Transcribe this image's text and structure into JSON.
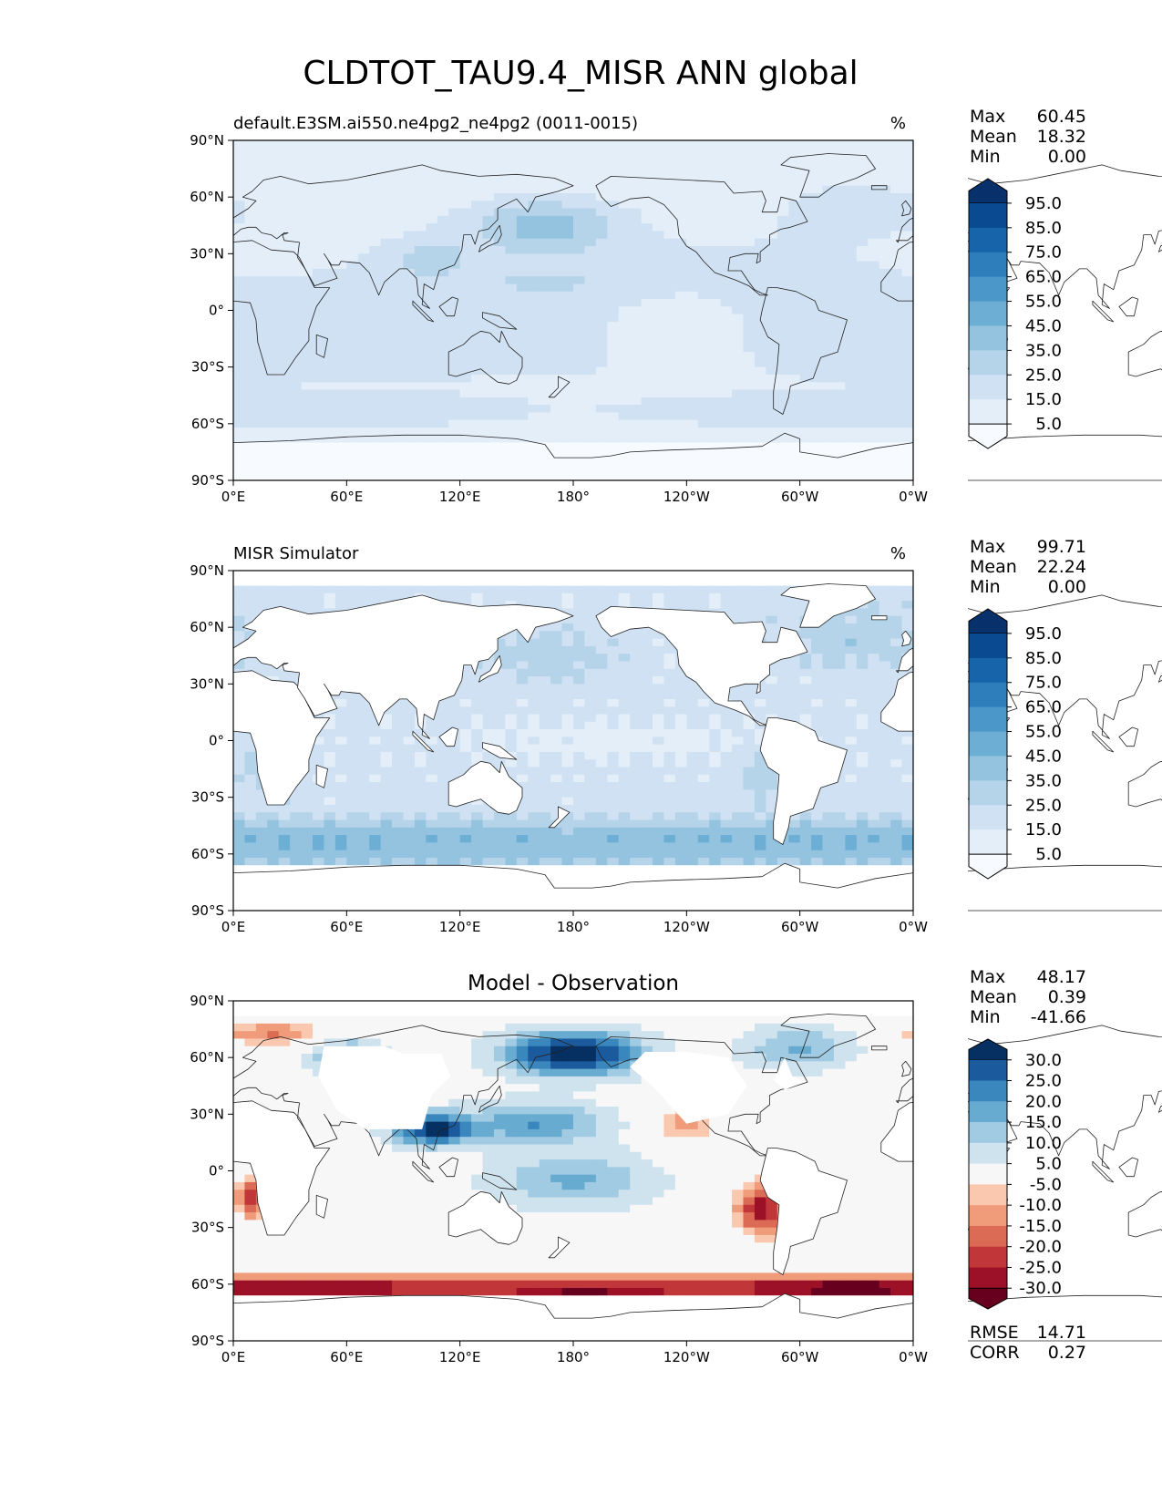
{
  "title": "CLDTOT_TAU9.4_MISR ANN global",
  "unit": "%",
  "lat_ticks": [
    "90°N",
    "60°N",
    "30°N",
    "0°",
    "30°S",
    "60°S",
    "90°S"
  ],
  "lon_ticks": [
    "0°E",
    "60°E",
    "120°E",
    "180°",
    "120°W",
    "60°W",
    "0°W"
  ],
  "stat_labels": {
    "max": "Max",
    "mean": "Mean",
    "min": "Min",
    "rmse": "RMSE",
    "corr": "CORR"
  },
  "panels": [
    {
      "subtitle": "default.E3SM.ai550.ne4pg2_ne4pg2 (0011-0015)",
      "center_title": "",
      "unit": "%",
      "stats": {
        "max": "60.45",
        "mean": "18.32",
        "min": "0.00"
      },
      "colorbar": [
        "95.0",
        "85.0",
        "75.0",
        "65.0",
        "55.0",
        "45.0",
        "35.0",
        "25.0",
        "15.0",
        "5.0"
      ],
      "field": "model"
    },
    {
      "subtitle": "MISR Simulator",
      "center_title": "",
      "unit": "%",
      "stats": {
        "max": "99.71",
        "mean": "22.24",
        "min": "0.00"
      },
      "colorbar": [
        "95.0",
        "85.0",
        "75.0",
        "65.0",
        "55.0",
        "45.0",
        "35.0",
        "25.0",
        "15.0",
        "5.0"
      ],
      "field": "obs"
    },
    {
      "subtitle": "",
      "center_title": "Model - Observation",
      "unit": "",
      "stats": {
        "max": "48.17",
        "mean": "0.39",
        "min": "-41.66"
      },
      "colorbar": [
        "30.0",
        "25.0",
        "20.0",
        "15.0",
        "10.0",
        "5.0",
        "-5.0",
        "-10.0",
        "-15.0",
        "-20.0",
        "-25.0",
        "-30.0"
      ],
      "field": "diff",
      "metrics": {
        "rmse": "14.71",
        "corr": "0.27"
      }
    }
  ],
  "colors": {
    "blues": [
      "#f7fbff",
      "#e3eef9",
      "#cfe1f2",
      "#b5d4e9",
      "#93c3df",
      "#6daed5",
      "#4b97c9",
      "#2f7ebc",
      "#1864aa",
      "#0a4a90",
      "#08306b"
    ],
    "diverging": [
      "#67001f",
      "#9c1127",
      "#c13639",
      "#db6b55",
      "#f09c7b",
      "#fac8af",
      "#f7f7f7",
      "#cfe3ef",
      "#a1cbe2",
      "#68abd0",
      "#3a87bd",
      "#1b5b9d",
      "#053061"
    ],
    "land_white": "#ffffff"
  }
}
